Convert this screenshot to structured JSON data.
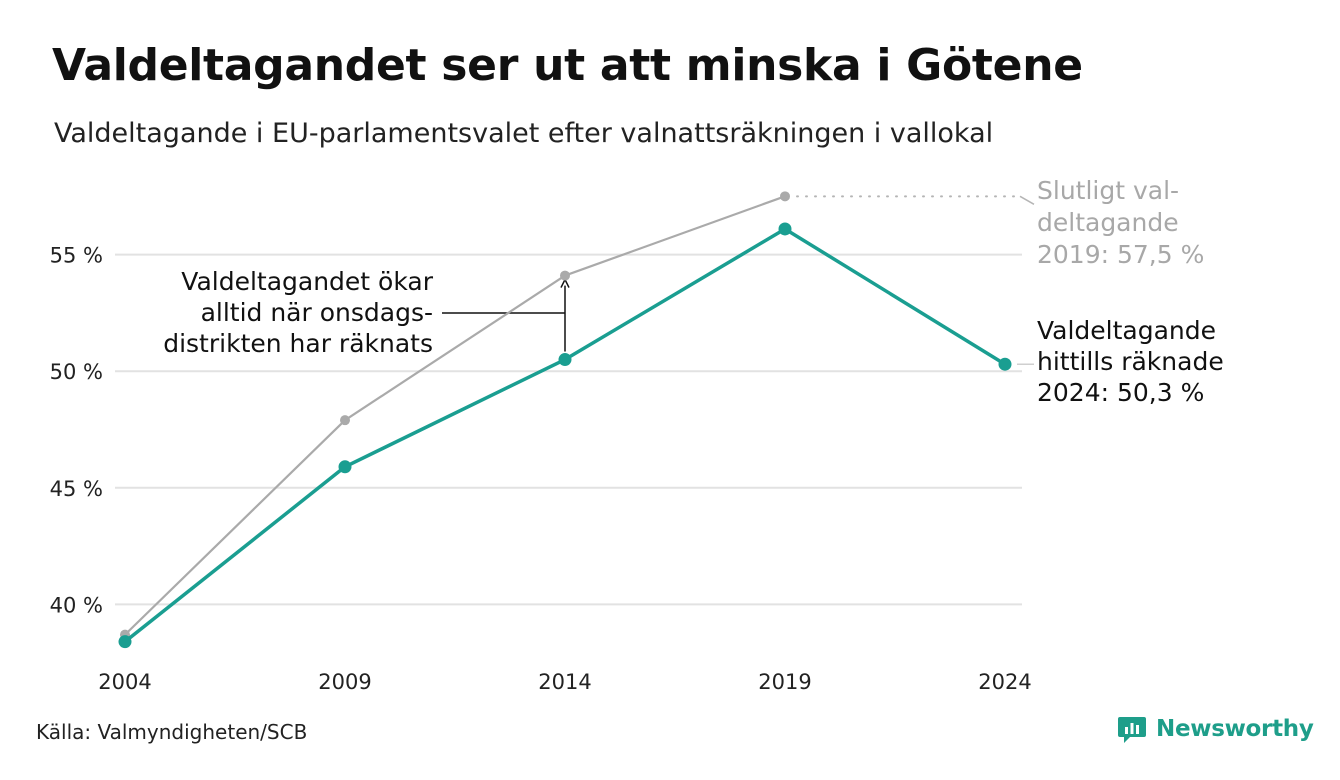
{
  "header": {
    "title": "Valdeltagandet ser ut att minska i Götene",
    "subtitle": "Valdeltagande i EU-parlamentsvalet efter valnattsräkningen i vallokal"
  },
  "chart_data": {
    "type": "line",
    "x": [
      "2004",
      "2009",
      "2014",
      "2019",
      "2024"
    ],
    "series": [
      {
        "key": "final",
        "values": [
          38.7,
          47.9,
          54.1,
          57.5,
          null
        ],
        "color": "#aaaaaa"
      },
      {
        "key": "counted",
        "values": [
          38.4,
          45.9,
          50.5,
          56.1,
          50.3
        ],
        "color": "#1a9e91"
      }
    ],
    "ylim": [
      37.7,
      58.5
    ],
    "yticks": [
      40,
      45,
      50,
      55
    ],
    "ytick_labels": [
      "40 %",
      "45 %",
      "50 %",
      "55 %"
    ],
    "grid": true,
    "annotations": {
      "final_label": [
        "Slutligt val-",
        "deltagande",
        "2019: 57,5 %"
      ],
      "counted_label": [
        "Valdeltagande",
        "hittills räknade",
        "2024: 50,3 %"
      ],
      "arrow_note": [
        "Valdeltagandet ökar",
        "alltid när onsdags-",
        "distrikten har räknats"
      ]
    }
  },
  "footer": {
    "source": "Källa: Valmyndigheten/SCB",
    "brand": "Newsworthy",
    "brand_icon": "newsworthy-logo-icon",
    "brand_color": "#1e9e8a"
  }
}
